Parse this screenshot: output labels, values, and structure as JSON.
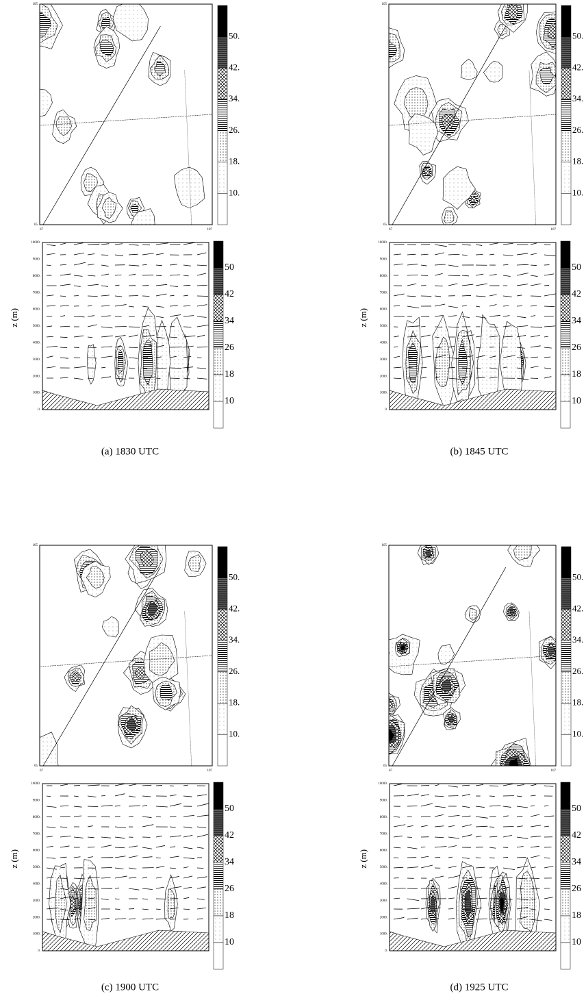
{
  "panels": [
    {
      "caption": "(a) 1830 UTC"
    },
    {
      "caption": "(b) 1845 UTC"
    },
    {
      "caption": "(c) 1900 UTC"
    },
    {
      "caption": "(d) 1925 UTC"
    }
  ],
  "plan_corner_labels": {
    "top": "105",
    "bottom": "65",
    "left_x": "67",
    "right_x": "107"
  },
  "plan_colorbar_labels": [
    "50.",
    "42.",
    "34.",
    "26.",
    "18.",
    "10."
  ],
  "section_colorbar_labels": [
    "50",
    "42",
    "34",
    "26",
    "18",
    "10"
  ],
  "section_yticks": [
    "10000.",
    "9000.",
    "8000.",
    "7000.",
    "6000.",
    "5000.",
    "4000.",
    "3000.",
    "2000.",
    "1000.",
    "0."
  ],
  "section_ylabel": "z (m)"
}
